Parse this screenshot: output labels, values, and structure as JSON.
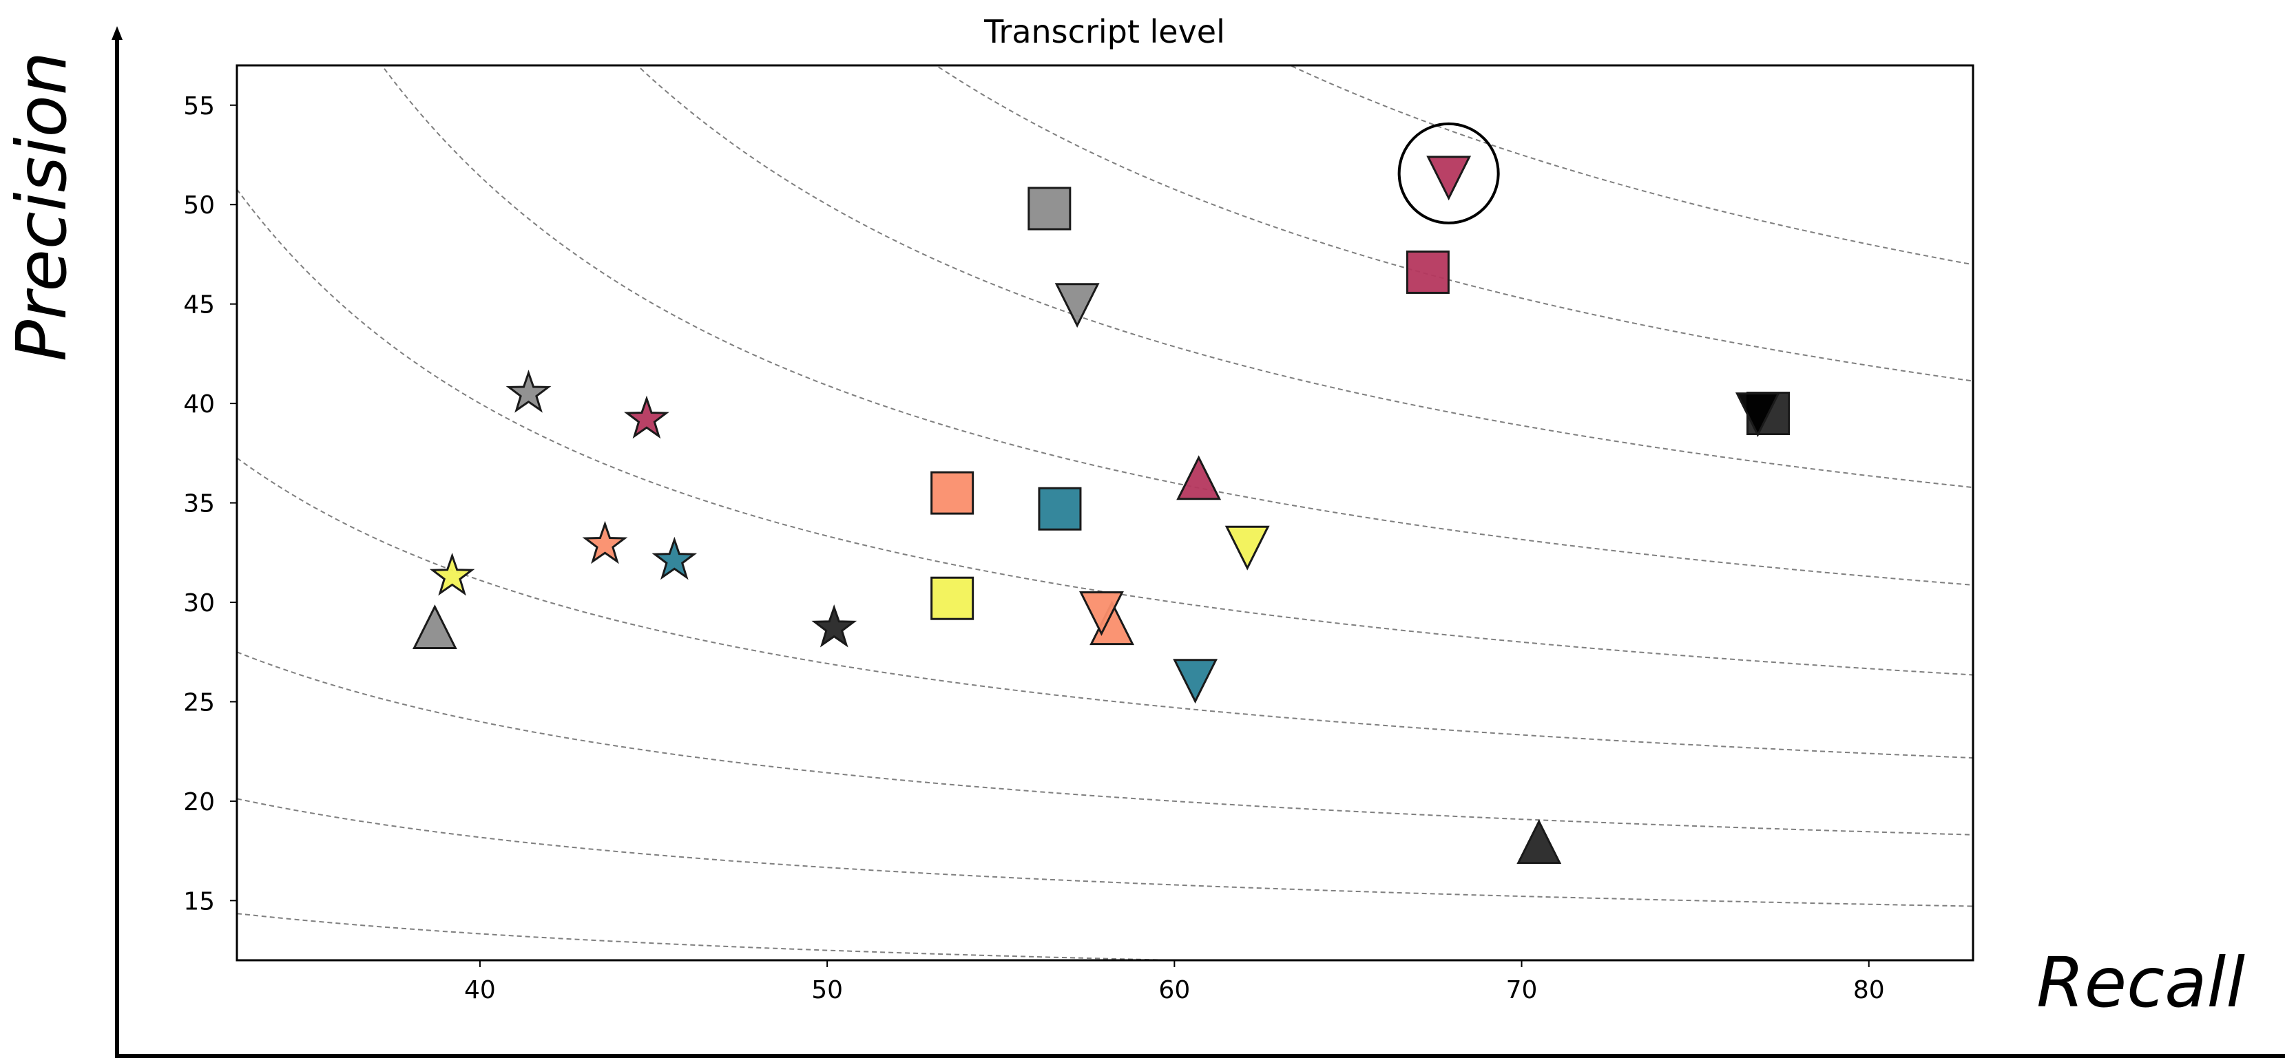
{
  "chart_data": {
    "type": "scatter",
    "title": "Transcript level",
    "xlabel": "Recall",
    "ylabel": "Precision",
    "xlim": [
      33,
      83
    ],
    "ylim": [
      12,
      57
    ],
    "xticks": [
      40,
      50,
      60,
      70,
      80
    ],
    "yticks": [
      15,
      20,
      25,
      30,
      35,
      40,
      45,
      50,
      55
    ],
    "grid": false,
    "legend": "none",
    "iso_f1_contours": [
      0.2,
      0.25,
      0.3,
      0.35,
      0.4,
      0.45,
      0.5,
      0.55,
      0.6
    ],
    "colors": {
      "gray": "#8c8c8c",
      "crimson": "#b5375e",
      "salmon": "#fa8e6c",
      "teal": "#2a8197",
      "yellow": "#f2f256",
      "black": "#262626"
    },
    "points": [
      {
        "marker": "star",
        "color": "#8c8c8c",
        "x": 41.4,
        "y": 40.5
      },
      {
        "marker": "star",
        "color": "#b5375e",
        "x": 44.8,
        "y": 39.2
      },
      {
        "marker": "star",
        "color": "#fa8e6c",
        "x": 43.6,
        "y": 32.9
      },
      {
        "marker": "star",
        "color": "#2a8197",
        "x": 45.6,
        "y": 32.1
      },
      {
        "marker": "star",
        "color": "#f2f256",
        "x": 39.2,
        "y": 31.3
      },
      {
        "marker": "star",
        "color": "#262626",
        "x": 50.2,
        "y": 28.7
      },
      {
        "marker": "triangle-up",
        "color": "#8c8c8c",
        "x": 38.7,
        "y": 28.6
      },
      {
        "marker": "triangle-up",
        "color": "#b5375e",
        "x": 60.7,
        "y": 36.1
      },
      {
        "marker": "triangle-up",
        "color": "#fa8e6c",
        "x": 58.2,
        "y": 28.8
      },
      {
        "marker": "triangle-up",
        "color": "#262626",
        "x": 70.5,
        "y": 17.8
      },
      {
        "marker": "square",
        "color": "#8c8c8c",
        "x": 56.4,
        "y": 49.8
      },
      {
        "marker": "square",
        "color": "#b5375e",
        "x": 67.3,
        "y": 46.6
      },
      {
        "marker": "square",
        "color": "#fa8e6c",
        "x": 53.6,
        "y": 35.5
      },
      {
        "marker": "square",
        "color": "#2a8197",
        "x": 56.7,
        "y": 34.7
      },
      {
        "marker": "square",
        "color": "#f2f256",
        "x": 53.6,
        "y": 30.2
      },
      {
        "marker": "square",
        "color": "#262626",
        "x": 77.1,
        "y": 39.5
      },
      {
        "marker": "triangle-down",
        "color": "#8c8c8c",
        "x": 57.2,
        "y": 45.1
      },
      {
        "marker": "triangle-down",
        "color": "#b5375e",
        "x": 67.9,
        "y": 51.5
      },
      {
        "marker": "triangle-down",
        "color": "#fa8e6c",
        "x": 57.9,
        "y": 29.6
      },
      {
        "marker": "triangle-down",
        "color": "#2a8197",
        "x": 60.6,
        "y": 26.2
      },
      {
        "marker": "triangle-down",
        "color": "#f2f256",
        "x": 62.1,
        "y": 32.9
      },
      {
        "marker": "triangle-down",
        "color": "#000000",
        "x": 76.8,
        "y": 39.6
      }
    ],
    "highlight": {
      "x": 67.9,
      "y": 51.5,
      "shape": "circle"
    }
  }
}
